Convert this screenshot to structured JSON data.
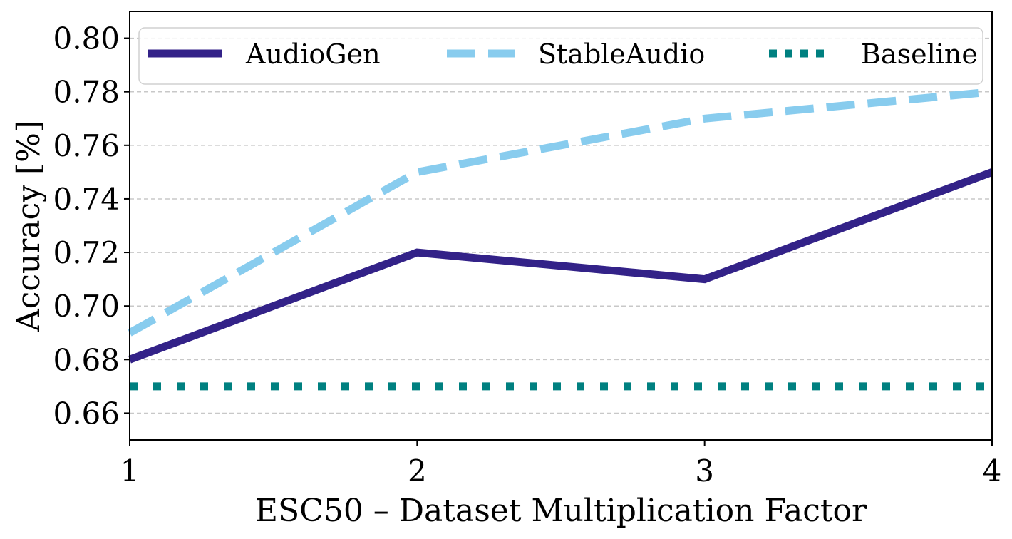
{
  "chart_data": {
    "type": "line",
    "title": "",
    "xlabel": "ESC50 – Dataset Multiplication Factor",
    "ylabel": "Accuracy [%]",
    "x": [
      1,
      2,
      3,
      4
    ],
    "x_tick_labels": [
      "1",
      "2",
      "3",
      "4"
    ],
    "xlim": [
      1,
      4
    ],
    "ylim": [
      0.65,
      0.81
    ],
    "y_ticks": [
      0.66,
      0.68,
      0.7,
      0.72,
      0.74,
      0.76,
      0.78,
      0.8
    ],
    "y_tick_labels": [
      "0.66",
      "0.68",
      "0.70",
      "0.72",
      "0.74",
      "0.76",
      "0.78",
      "0.80"
    ],
    "grid": "horizontal dashed",
    "legend_position": "top",
    "series": [
      {
        "name": "AudioGen",
        "values": [
          0.68,
          0.72,
          0.71,
          0.75
        ],
        "color": "#332288",
        "style": "solid"
      },
      {
        "name": "StableAudio",
        "values": [
          0.69,
          0.75,
          0.77,
          0.78
        ],
        "color": "#88CCEE",
        "style": "dashed"
      },
      {
        "name": "Baseline",
        "values": [
          0.67,
          0.67,
          0.67,
          0.67
        ],
        "color": "#008080",
        "style": "dotted"
      }
    ]
  }
}
